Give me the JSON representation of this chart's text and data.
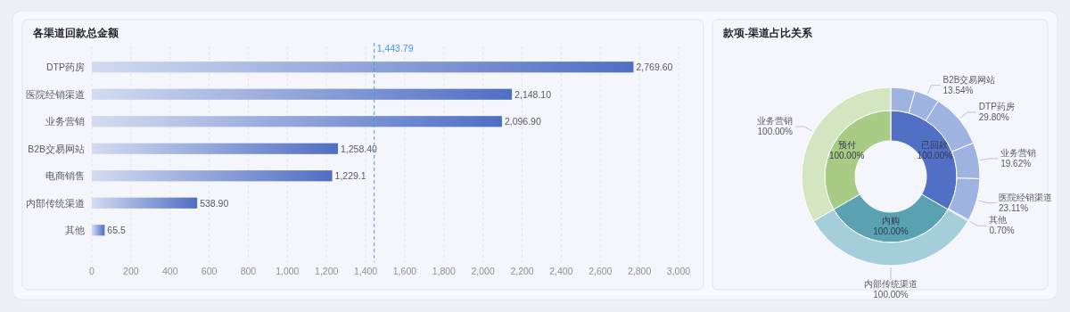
{
  "chart_data": [
    {
      "type": "bar",
      "orientation": "horizontal",
      "title": "各渠道回款总金额",
      "categories": [
        "DTP药房",
        "医院经销渠道",
        "业务营销",
        "B2B交易网站",
        "电商销售",
        "内部传统渠道",
        "其他"
      ],
      "values": [
        2769.6,
        2148.1,
        2096.9,
        1258.4,
        1229.1,
        538.9,
        65.5
      ],
      "value_labels": [
        "2,769.60",
        "2,148.10",
        "2,096.90",
        "1,258.40",
        "1,229.1",
        "538.90",
        "65.5"
      ],
      "color": "#4f6ec4",
      "xlim": [
        0,
        3000
      ],
      "xticks": [
        0,
        200,
        400,
        600,
        800,
        {
          "value": 1000,
          "label": "1,000"
        },
        {
          "value": 1200,
          "label": "1,200"
        },
        {
          "value": 1400,
          "label": "1,400"
        },
        {
          "value": 1600,
          "label": "1,600"
        },
        {
          "value": 1800,
          "label": "1,800"
        },
        {
          "value": 2000,
          "label": "2,000"
        },
        {
          "value": 2200,
          "label": "2,200"
        },
        {
          "value": 2400,
          "label": "2,400"
        },
        {
          "value": 2600,
          "label": "2,600"
        },
        {
          "value": 2800,
          "label": "2,800"
        },
        {
          "value": 3000,
          "label": "3,000"
        }
      ],
      "grid": "x",
      "ref_lines": [
        {
          "axis": "x",
          "value": 1443.79,
          "label": "1,443.79",
          "color": "#4096ff",
          "line_style": "dashed"
        }
      ]
    },
    {
      "type": "donut",
      "title": "款项-渠道占比关系",
      "categories": [
        "已回款",
        "内购",
        "预付"
      ],
      "values": [
        100,
        100,
        100
      ],
      "value_labels": [
        "100.00%",
        "100.00%",
        "100.00%"
      ],
      "colors": [
        "#516fc4",
        "#5aa1b2",
        "#a8cb86"
      ]
    },
    {
      "type": "donut",
      "categories": [
        null,
        "B2B交易网站",
        "DTP药房",
        "业务营销",
        "医院经销渠道",
        "其他",
        "内部传统渠道",
        "业务营销"
      ],
      "values": [
        13.23,
        13.54,
        29.8,
        19.62,
        23.11,
        0.7,
        100,
        100
      ],
      "value_labels": [
        null,
        "13.54%",
        "29.80%",
        "19.62%",
        "23.11%",
        "0.70%",
        "100.00%",
        "100.00%"
      ],
      "colors": [
        "#9fb3e1",
        "#9fb3e1",
        "#9fb3e1",
        "#9fb3e1",
        "#9fb3e1",
        "#9fb3e1",
        "#a4cfda",
        "#d3e6c1"
      ]
    }
  ]
}
